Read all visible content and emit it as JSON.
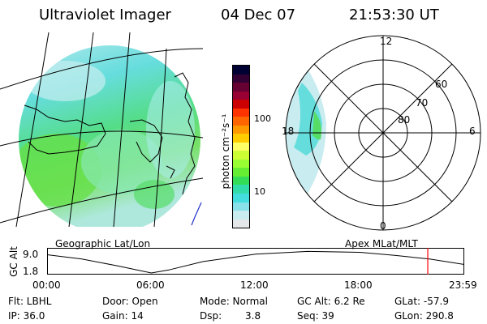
{
  "header": {
    "instrument": "Ultraviolet Imager",
    "date": "04 Dec 07",
    "time": "21:53:30 UT"
  },
  "colorbar": {
    "unit_label": "photon cm⁻²s⁻¹",
    "tick_100": "100",
    "tick_10": "10",
    "colors": [
      "#000033",
      "#330033",
      "#660033",
      "#990033",
      "#cc0000",
      "#ff3300",
      "#ff6600",
      "#ff9900",
      "#ffcc00",
      "#ffff66",
      "#ccff33",
      "#99ff33",
      "#66ee33",
      "#33dd55",
      "#33ddaa",
      "#44dddd",
      "#88e0e8",
      "#c8ecef",
      "#e4e8ea"
    ]
  },
  "polar_plot": {
    "label_12": "12",
    "label_6": "6",
    "label_18": "18",
    "label_0": "0",
    "label_60": "60",
    "label_70": "70",
    "label_80": "80"
  },
  "plot_labels": {
    "left": "Geographic Lat/Lon",
    "right": "Apex MLat/MLT"
  },
  "altitude_plot": {
    "ylabel": "GC Alt",
    "y_top": "9.0",
    "y_bottom": "1.8",
    "x_ticks": [
      "00:00",
      "06:00",
      "12:00",
      "18:00",
      "23:59"
    ],
    "current_marker_color": "#ff0000"
  },
  "chart_data": {
    "type": "line",
    "title": "",
    "xlabel": "",
    "ylabel": "GC Alt",
    "x_hours": [
      0,
      2,
      4,
      6,
      7,
      9,
      12,
      15,
      18,
      20,
      22,
      24
    ],
    "y_re": [
      7.8,
      6.4,
      4.2,
      1.8,
      2.8,
      5.6,
      8.0,
      8.9,
      8.6,
      7.6,
      6.4,
      4.6
    ],
    "ylim": [
      1.8,
      9.0
    ],
    "xlim": [
      0,
      24
    ],
    "marker_hour": 21.9
  },
  "footer": {
    "flt_label": "Flt: LBHL",
    "ip_label": "IP: 36.0",
    "door_label": "Door: Open",
    "gain_label": "Gain: 14",
    "mode_label": "Mode: Normal",
    "dsp_label": "Dsp:",
    "dsp_value": "3.8",
    "gcalt_label": "GC Alt: 6.2 Re",
    "seq_label": "Seq: 39",
    "glat_label": "GLat: -57.9",
    "glon_label": "GLon: 290.8"
  }
}
